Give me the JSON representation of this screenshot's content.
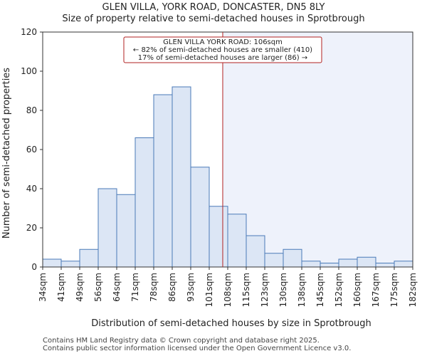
{
  "chart_data": {
    "type": "bar",
    "title": "GLEN VILLA, YORK ROAD, DONCASTER, DN5 8LY",
    "subtitle": "Size of property relative to semi-detached houses in Sprotbrough",
    "xlabel": "Distribution of semi-detached houses by size in Sprotbrough",
    "ylabel": "Number of semi-detached properties",
    "ylim": [
      0,
      120
    ],
    "yticks": [
      0,
      20,
      40,
      60,
      80,
      100,
      120
    ],
    "tick_labels": [
      "34sqm",
      "41sqm",
      "49sqm",
      "56sqm",
      "64sqm",
      "71sqm",
      "78sqm",
      "86sqm",
      "93sqm",
      "101sqm",
      "108sqm",
      "115sqm",
      "123sqm",
      "130sqm",
      "138sqm",
      "145sqm",
      "152sqm",
      "160sqm",
      "167sqm",
      "175sqm",
      "182sqm"
    ],
    "values": [
      4,
      3,
      9,
      40,
      37,
      66,
      88,
      92,
      51,
      31,
      27,
      16,
      7,
      9,
      3,
      2,
      4,
      5,
      2,
      3
    ],
    "marker": {
      "value_sqm": 106,
      "line1": "GLEN VILLA YORK ROAD: 106sqm",
      "line2": "← 82% of semi-detached houses are smaller (410)",
      "line3": "17% of semi-detached houses are larger (86) →"
    },
    "colors": {
      "bar_fill": "#dce6f5",
      "bar_edge": "#4a7ab8",
      "marker_line": "#b22222",
      "highlight_region": "#eef2fb"
    }
  },
  "footer": {
    "line1": "Contains HM Land Registry data © Crown copyright and database right 2025.",
    "line2": "Contains public sector information licensed under the Open Government Licence v3.0."
  }
}
